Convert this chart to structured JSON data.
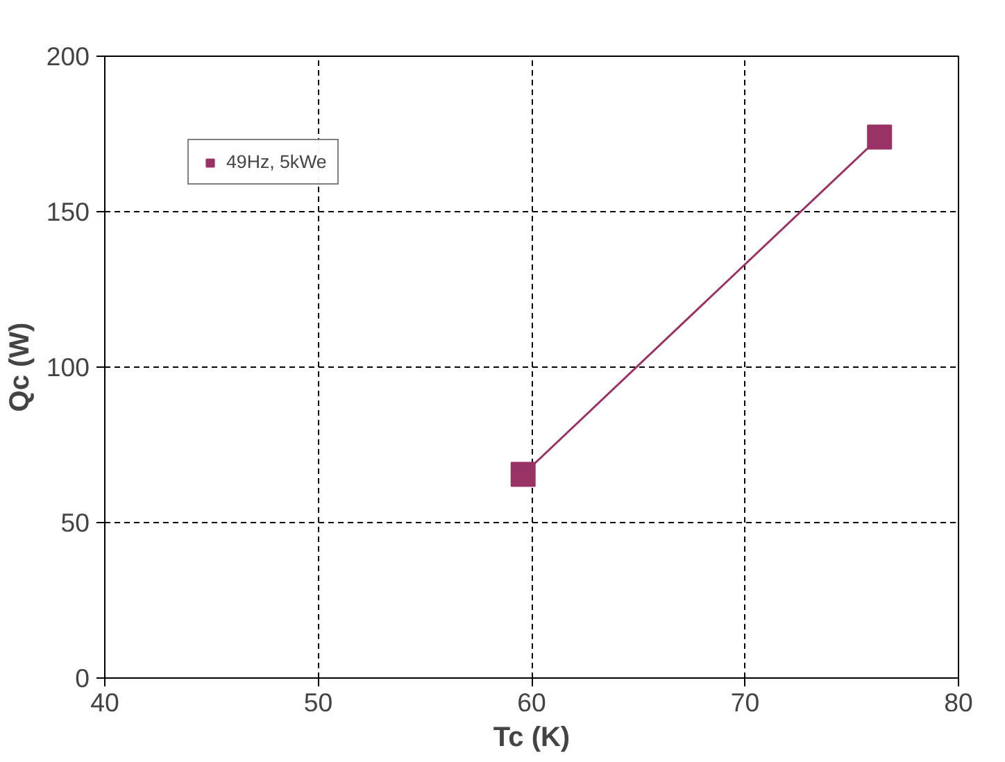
{
  "chart_data": {
    "type": "line",
    "xlabel": "Tc (K)",
    "ylabel": "Qc (W)",
    "x": [
      59.6,
      76.3
    ],
    "series": [
      {
        "name": "49Hz, 5kWe",
        "color": "#993366",
        "values": [
          65.5,
          174
        ]
      }
    ],
    "xlim": [
      40,
      80
    ],
    "xticks": [
      40,
      50,
      60,
      70,
      80
    ],
    "ylim": [
      0,
      200
    ],
    "yticks": [
      0,
      50,
      100,
      150,
      200
    ],
    "grid": true,
    "legend": "top left",
    "marker": "square",
    "line_style": "solid"
  }
}
